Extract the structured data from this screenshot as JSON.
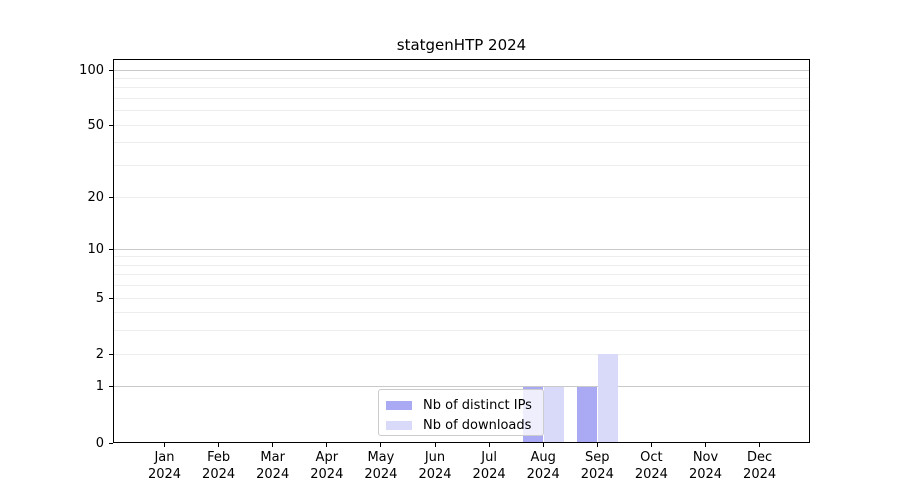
{
  "title": "statgenHTP 2024",
  "chart_data": {
    "type": "bar",
    "title": "statgenHTP 2024",
    "x_months": [
      "Jan",
      "Feb",
      "Mar",
      "Apr",
      "May",
      "Jun",
      "Jul",
      "Aug",
      "Sep",
      "Oct",
      "Nov",
      "Dec"
    ],
    "x_year": "2024",
    "series": [
      {
        "name": "Nb of distinct IPs",
        "color": "#a9a9f4",
        "values": [
          0,
          0,
          0,
          0,
          0,
          0,
          0,
          1,
          1,
          0,
          0,
          0
        ]
      },
      {
        "name": "Nb of downloads",
        "color": "#d9d9f9",
        "values": [
          0,
          0,
          0,
          0,
          0,
          0,
          0,
          1,
          2,
          0,
          0,
          0
        ]
      }
    ],
    "yscale": "log1p",
    "ylim": [
      0,
      115
    ],
    "ytick_labels": [
      100,
      50,
      20,
      10,
      5,
      2,
      1,
      0
    ],
    "major_grid_values": [
      1,
      10,
      100
    ],
    "minor_grid_values": [
      2,
      3,
      4,
      5,
      6,
      7,
      8,
      9,
      20,
      30,
      40,
      50,
      60,
      70,
      80,
      90
    ],
    "grid": "horizontal",
    "legend_position": "lower center"
  },
  "colors": {
    "major_grid": "#c9c9c9",
    "minor_grid": "#ededed",
    "spine": "#000000",
    "legend_border": "#cccccc"
  }
}
